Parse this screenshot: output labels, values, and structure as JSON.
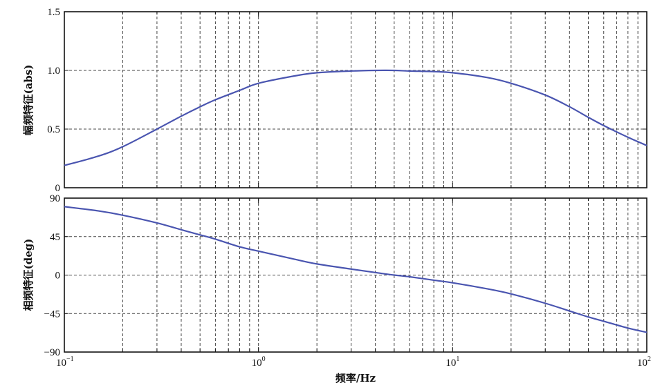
{
  "chart_data": [
    {
      "type": "line",
      "panel": "magnitude",
      "ylabel": "幅频特征(abs)",
      "xscale": "log",
      "xlim": [
        0.1,
        100
      ],
      "ylim": [
        0,
        1.5
      ],
      "yticks": [
        0,
        0.5,
        1.0,
        1.5
      ],
      "ytick_labels": [
        "0",
        "0.5",
        "1.0",
        "1.5"
      ],
      "grid": true,
      "series": [
        {
          "x": [
            0.1,
            0.15,
            0.2,
            0.3,
            0.4,
            0.5,
            0.6,
            0.8,
            1.0,
            1.5,
            2.0,
            3.0,
            4.0,
            5.0,
            6.0,
            8.0,
            10,
            15,
            20,
            30,
            40,
            50,
            60,
            80,
            100
          ],
          "y": [
            0.19,
            0.27,
            0.35,
            0.5,
            0.61,
            0.69,
            0.75,
            0.83,
            0.89,
            0.95,
            0.98,
            0.995,
            1.0,
            1.0,
            0.995,
            0.99,
            0.98,
            0.94,
            0.89,
            0.79,
            0.69,
            0.6,
            0.53,
            0.43,
            0.36
          ]
        }
      ]
    },
    {
      "type": "line",
      "panel": "phase",
      "ylabel": "相频特征(deg)",
      "xlabel": "频率/Hz",
      "xscale": "log",
      "xlim": [
        0.1,
        100
      ],
      "ylim": [
        -90,
        90
      ],
      "yticks": [
        90,
        45,
        0,
        -45,
        -90
      ],
      "ytick_labels": [
        "90",
        "45",
        "0",
        "−45",
        "−90"
      ],
      "xtick_labels": [
        {
          "base": "10",
          "exp": "−1"
        },
        {
          "base": "10",
          "exp": "0"
        },
        {
          "base": "10",
          "exp": "1"
        },
        {
          "base": "10",
          "exp": "2"
        }
      ],
      "grid": true,
      "series": [
        {
          "x": [
            0.1,
            0.15,
            0.2,
            0.3,
            0.4,
            0.5,
            0.6,
            0.8,
            1.0,
            1.5,
            2.0,
            3.0,
            4.0,
            5.0,
            6.0,
            8.0,
            10,
            15,
            20,
            30,
            40,
            50,
            60,
            80,
            100
          ],
          "y": [
            80,
            75,
            70,
            61,
            53,
            47,
            42,
            33,
            28,
            19,
            13,
            7,
            3,
            0,
            -2,
            -6,
            -9,
            -16,
            -22,
            -33,
            -42,
            -49,
            -54,
            -62,
            -67
          ]
        }
      ]
    }
  ],
  "colors": {
    "curve": "#4a55b0"
  }
}
